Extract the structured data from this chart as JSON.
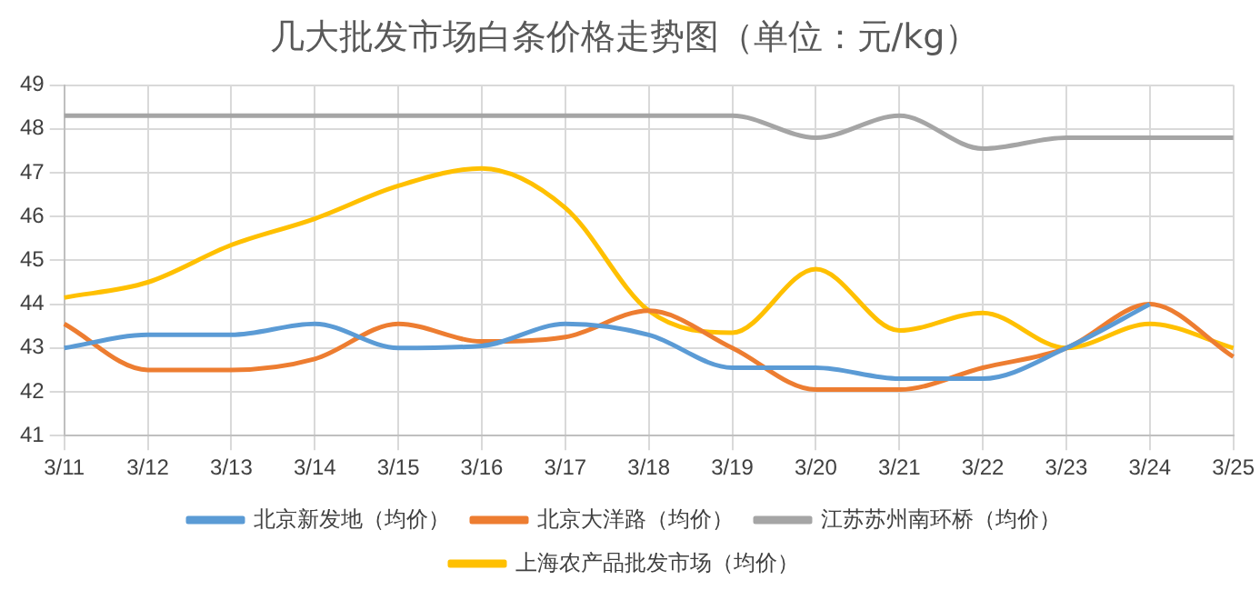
{
  "chart_data": {
    "type": "line",
    "title": "几大批发市场白条价格走势图（单位：元/kg）",
    "categories": [
      "3/11",
      "3/12",
      "3/13",
      "3/14",
      "3/15",
      "3/16",
      "3/17",
      "3/18",
      "3/19",
      "3/20",
      "3/21",
      "3/22",
      "3/23",
      "3/24",
      "3/25"
    ],
    "series": [
      {
        "name": "北京新发地（均价）",
        "color": "#5b9bd5",
        "values": [
          43.0,
          43.3,
          43.3,
          43.55,
          43.0,
          43.05,
          43.55,
          43.3,
          42.55,
          42.55,
          42.3,
          42.3,
          43.0,
          44.0,
          null
        ]
      },
      {
        "name": "北京大洋路（均价）",
        "color": "#ed7d31",
        "values": [
          43.55,
          42.5,
          42.5,
          42.75,
          43.55,
          43.15,
          43.25,
          43.85,
          43.0,
          42.05,
          42.05,
          42.55,
          43.0,
          44.0,
          42.8
        ]
      },
      {
        "name": "江苏苏州南环桥（均价）",
        "color": "#a5a5a5",
        "values": [
          48.3,
          48.3,
          48.3,
          48.3,
          48.3,
          48.3,
          48.3,
          48.3,
          48.3,
          47.8,
          48.3,
          47.55,
          47.8,
          47.8,
          47.8
        ]
      },
      {
        "name": "上海农产品批发市场（均价）",
        "color": "#ffc000",
        "values": [
          44.15,
          44.5,
          45.35,
          45.95,
          46.7,
          47.1,
          46.2,
          43.85,
          43.35,
          44.8,
          43.4,
          43.8,
          43.0,
          43.55,
          43.0
        ]
      }
    ],
    "ylim": [
      41,
      49
    ],
    "yticks": [
      41,
      42,
      43,
      44,
      45,
      46,
      47,
      48,
      49
    ],
    "grid": true,
    "legend": "bottom",
    "marker": "none",
    "line_style": "solid"
  }
}
